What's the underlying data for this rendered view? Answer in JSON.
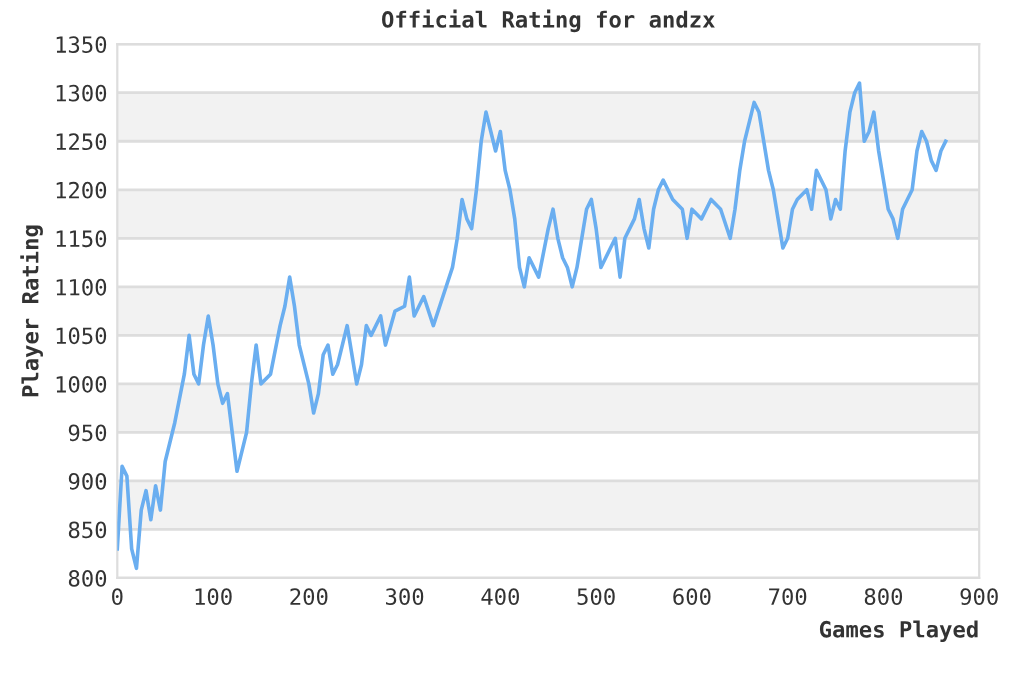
{
  "chart_data": {
    "type": "line",
    "title": "Official Rating for andzx",
    "xlabel": "Games Played",
    "ylabel": "Player Rating",
    "xlim": [
      0,
      900
    ],
    "xticks": [
      0,
      100,
      200,
      300,
      400,
      500,
      600,
      700,
      800,
      900
    ],
    "ylim": [
      800,
      1350
    ],
    "yticks": [
      800,
      850,
      900,
      950,
      1000,
      1050,
      1100,
      1150,
      1200,
      1250,
      1300,
      1350
    ],
    "grid": "y",
    "legend": false,
    "marker": "none",
    "line_style": "solid",
    "series": [
      {
        "color": "#6aaef0",
        "x": [
          0,
          5,
          10,
          15,
          20,
          25,
          30,
          35,
          40,
          45,
          50,
          60,
          70,
          75,
          80,
          85,
          90,
          95,
          100,
          105,
          110,
          115,
          120,
          125,
          130,
          135,
          140,
          145,
          150,
          160,
          170,
          175,
          180,
          185,
          190,
          200,
          205,
          210,
          215,
          220,
          225,
          230,
          240,
          250,
          255,
          260,
          265,
          275,
          280,
          290,
          300,
          305,
          310,
          320,
          330,
          340,
          350,
          355,
          360,
          365,
          370,
          375,
          380,
          385,
          390,
          395,
          400,
          405,
          410,
          415,
          420,
          425,
          430,
          440,
          450,
          455,
          460,
          465,
          470,
          475,
          480,
          490,
          495,
          500,
          505,
          510,
          520,
          525,
          530,
          540,
          545,
          550,
          555,
          560,
          565,
          570,
          580,
          590,
          595,
          600,
          610,
          620,
          630,
          640,
          645,
          650,
          655,
          660,
          665,
          670,
          675,
          680,
          685,
          690,
          695,
          700,
          705,
          710,
          720,
          725,
          730,
          740,
          745,
          750,
          755,
          760,
          765,
          770,
          775,
          780,
          785,
          790,
          795,
          800,
          805,
          810,
          815,
          820,
          825,
          830,
          835,
          840,
          845,
          850,
          855,
          860,
          865
        ],
        "values": [
          830,
          915,
          905,
          830,
          810,
          870,
          890,
          860,
          895,
          870,
          920,
          960,
          1010,
          1050,
          1010,
          1000,
          1040,
          1070,
          1040,
          1000,
          980,
          990,
          950,
          910,
          930,
          950,
          1000,
          1040,
          1000,
          1010,
          1060,
          1080,
          1110,
          1080,
          1040,
          1000,
          970,
          990,
          1030,
          1040,
          1010,
          1020,
          1060,
          1000,
          1020,
          1060,
          1050,
          1070,
          1040,
          1075,
          1080,
          1110,
          1070,
          1090,
          1060,
          1090,
          1120,
          1150,
          1190,
          1170,
          1160,
          1200,
          1250,
          1280,
          1260,
          1240,
          1260,
          1220,
          1200,
          1170,
          1120,
          1100,
          1130,
          1110,
          1160,
          1180,
          1150,
          1130,
          1120,
          1100,
          1120,
          1180,
          1190,
          1160,
          1120,
          1130,
          1150,
          1110,
          1150,
          1170,
          1190,
          1160,
          1140,
          1180,
          1200,
          1210,
          1190,
          1180,
          1150,
          1180,
          1170,
          1190,
          1180,
          1150,
          1180,
          1220,
          1250,
          1270,
          1290,
          1280,
          1250,
          1220,
          1200,
          1170,
          1140,
          1150,
          1180,
          1190,
          1200,
          1180,
          1220,
          1200,
          1170,
          1190,
          1180,
          1240,
          1280,
          1300,
          1310,
          1250,
          1260,
          1280,
          1240,
          1210,
          1180,
          1170,
          1150,
          1180,
          1190,
          1200,
          1240,
          1260,
          1250,
          1230,
          1220,
          1240,
          1250
        ]
      }
    ]
  }
}
